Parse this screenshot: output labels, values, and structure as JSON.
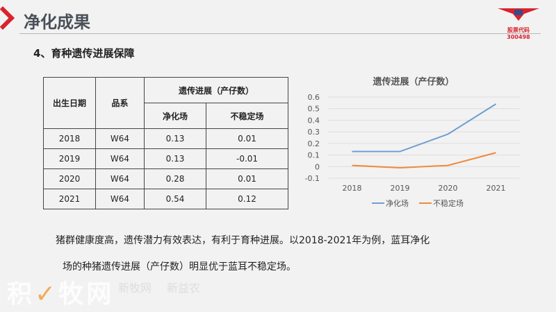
{
  "header": {
    "title": "净化成果",
    "logo_code": "股票代码 300498"
  },
  "section": {
    "subtitle": "4、育种遗传进展保障"
  },
  "table": {
    "headers": {
      "date": "出生日期",
      "breed": "品系",
      "group": "遗传进展（产仔数）",
      "col1": "净化场",
      "col2": "不稳定场"
    },
    "rows": [
      {
        "year": "2018",
        "breed": "W64",
        "a": "0.13",
        "b": "0.01"
      },
      {
        "year": "2019",
        "breed": "W64",
        "a": "0.13",
        "b": "-0.01"
      },
      {
        "year": "2020",
        "breed": "W64",
        "a": "0.28",
        "b": "0.01"
      },
      {
        "year": "2021",
        "breed": "W64",
        "a": "0.54",
        "b": "0.12"
      }
    ]
  },
  "chart_data": {
    "type": "line",
    "title": "遗传进展（产仔数）",
    "categories": [
      "2018",
      "2019",
      "2020",
      "2021"
    ],
    "series": [
      {
        "name": "净化场",
        "values": [
          0.13,
          0.13,
          0.28,
          0.54
        ],
        "color": "#6f9ed0"
      },
      {
        "name": "不稳定场",
        "values": [
          0.01,
          -0.01,
          0.01,
          0.12
        ],
        "color": "#ef8a3c"
      }
    ],
    "ylim": [
      -0.1,
      0.6
    ],
    "yticks": [
      "0.6",
      "0.5",
      "0.4",
      "0.3",
      "0.2",
      "0.1",
      "0",
      "-0.1"
    ],
    "grid": true,
    "legend": "bottom"
  },
  "body": {
    "line1": "猪群健康度高，遗传潜力有效表达，有利于育种进展。以2018-2021年为例，蓝耳净化",
    "line2": "场的种猪遗传进展（产仔数）明显优于蓝耳不稳定场。"
  },
  "watermark": {
    "text": "积牧网",
    "badge1": "新牧网",
    "badge2": "新益农"
  }
}
